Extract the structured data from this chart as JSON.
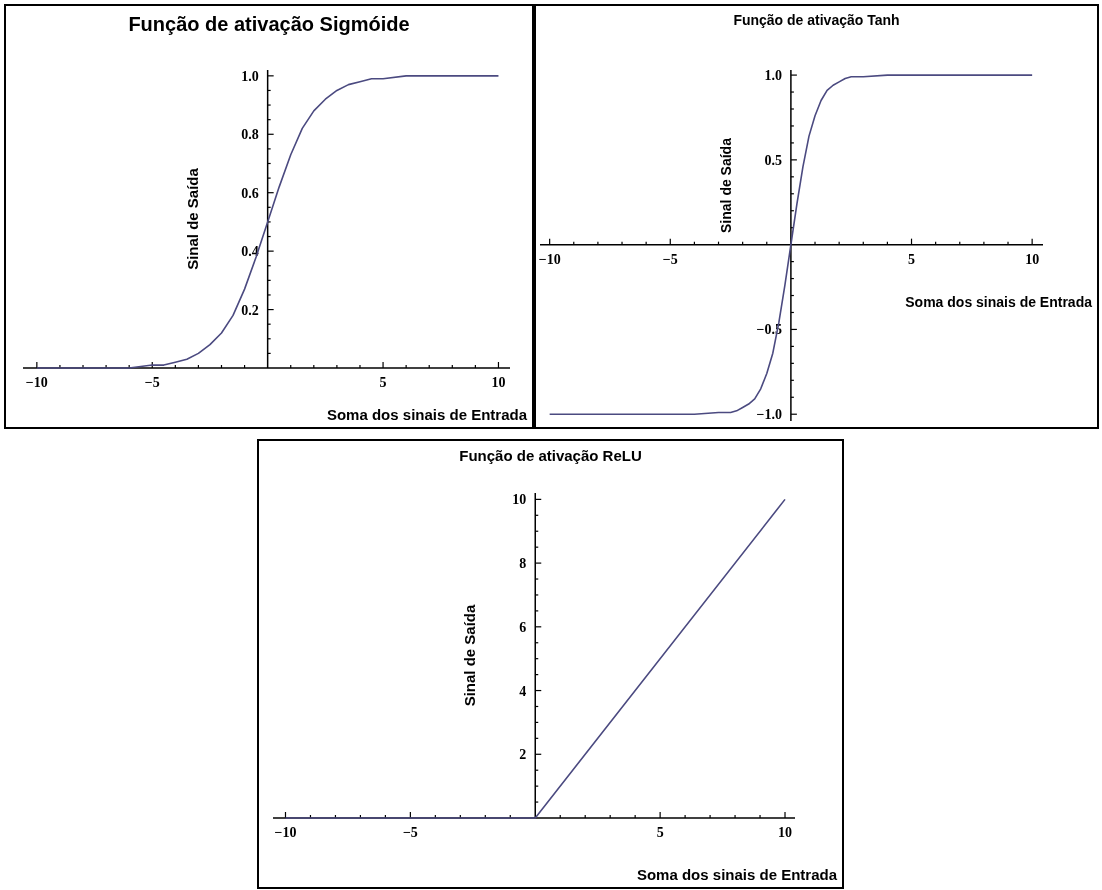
{
  "chart_data": [
    {
      "type": "line",
      "title": "Função de ativação Sigmóide",
      "xlabel": "Soma dos sinais de Entrada",
      "ylabel": "Sinal de Saída",
      "xlim": [
        -10.6,
        10.5
      ],
      "ylim": [
        0,
        1.02
      ],
      "grid": false,
      "xticks": [
        {
          "value": -10,
          "label": "−10"
        },
        {
          "value": -9,
          "label": null
        },
        {
          "value": -8,
          "label": null
        },
        {
          "value": -7,
          "label": null
        },
        {
          "value": -6,
          "label": null
        },
        {
          "value": -5,
          "label": "−5"
        },
        {
          "value": -4,
          "label": null
        },
        {
          "value": -3,
          "label": null
        },
        {
          "value": -2,
          "label": null
        },
        {
          "value": -1,
          "label": null
        },
        {
          "value": 1,
          "label": null
        },
        {
          "value": 2,
          "label": null
        },
        {
          "value": 3,
          "label": null
        },
        {
          "value": 4,
          "label": null
        },
        {
          "value": 5,
          "label": "5"
        },
        {
          "value": 6,
          "label": null
        },
        {
          "value": 7,
          "label": null
        },
        {
          "value": 8,
          "label": null
        },
        {
          "value": 9,
          "label": null
        },
        {
          "value": 10,
          "label": "10"
        }
      ],
      "yticks": [
        {
          "value": 0.05,
          "label": null
        },
        {
          "value": 0.1,
          "label": null
        },
        {
          "value": 0.15,
          "label": null
        },
        {
          "value": 0.2,
          "label": "0.2"
        },
        {
          "value": 0.25,
          "label": null
        },
        {
          "value": 0.3,
          "label": null
        },
        {
          "value": 0.35,
          "label": null
        },
        {
          "value": 0.4,
          "label": "0.4"
        },
        {
          "value": 0.45,
          "label": null
        },
        {
          "value": 0.5,
          "label": null
        },
        {
          "value": 0.55,
          "label": null
        },
        {
          "value": 0.6,
          "label": "0.6"
        },
        {
          "value": 0.65,
          "label": null
        },
        {
          "value": 0.7,
          "label": null
        },
        {
          "value": 0.75,
          "label": null
        },
        {
          "value": 0.8,
          "label": "0.8"
        },
        {
          "value": 0.85,
          "label": null
        },
        {
          "value": 0.9,
          "label": null
        },
        {
          "value": 0.95,
          "label": null
        },
        {
          "value": 1.0,
          "label": "1.0"
        }
      ],
      "series": [
        {
          "color": "#4b4a80",
          "x": [
            -10,
            -8,
            -6,
            -5,
            -4.5,
            -4,
            -3.5,
            -3,
            -2.5,
            -2,
            -1.5,
            -1,
            -0.5,
            0,
            0.5,
            1,
            1.5,
            2,
            2.5,
            3,
            3.5,
            4,
            4.5,
            5,
            6,
            8,
            10
          ],
          "values": [
            0,
            0,
            0,
            0.01,
            0.01,
            0.02,
            0.03,
            0.05,
            0.08,
            0.12,
            0.18,
            0.27,
            0.38,
            0.5,
            0.62,
            0.73,
            0.82,
            0.88,
            0.92,
            0.95,
            0.97,
            0.98,
            0.99,
            0.99,
            1,
            1,
            1
          ]
        }
      ]
    },
    {
      "type": "line",
      "title": "Função de ativação Tanh",
      "xlabel": "Soma dos sinais de Entrada",
      "ylabel": "Sinal de Saída",
      "xlim": [
        -10.4,
        10.45
      ],
      "ylim": [
        -1.04,
        1.03
      ],
      "grid": false,
      "xticks": [
        {
          "value": -10,
          "label": "−10"
        },
        {
          "value": -9,
          "label": null
        },
        {
          "value": -8,
          "label": null
        },
        {
          "value": -7,
          "label": null
        },
        {
          "value": -6,
          "label": null
        },
        {
          "value": -5,
          "label": "−5"
        },
        {
          "value": -4,
          "label": null
        },
        {
          "value": -3,
          "label": null
        },
        {
          "value": -2,
          "label": null
        },
        {
          "value": -1,
          "label": null
        },
        {
          "value": 1,
          "label": null
        },
        {
          "value": 2,
          "label": null
        },
        {
          "value": 3,
          "label": null
        },
        {
          "value": 4,
          "label": null
        },
        {
          "value": 5,
          "label": "5"
        },
        {
          "value": 6,
          "label": null
        },
        {
          "value": 7,
          "label": null
        },
        {
          "value": 8,
          "label": null
        },
        {
          "value": 9,
          "label": null
        },
        {
          "value": 10,
          "label": "10"
        }
      ],
      "yticks": [
        {
          "value": -1.0,
          "label": "−1.0"
        },
        {
          "value": -0.9,
          "label": null
        },
        {
          "value": -0.8,
          "label": null
        },
        {
          "value": -0.7,
          "label": null
        },
        {
          "value": -0.6,
          "label": null
        },
        {
          "value": -0.5,
          "label": "−0.5"
        },
        {
          "value": -0.4,
          "label": null
        },
        {
          "value": -0.3,
          "label": null
        },
        {
          "value": -0.2,
          "label": null
        },
        {
          "value": -0.1,
          "label": null
        },
        {
          "value": 0.1,
          "label": null
        },
        {
          "value": 0.2,
          "label": null
        },
        {
          "value": 0.3,
          "label": null
        },
        {
          "value": 0.4,
          "label": null
        },
        {
          "value": 0.5,
          "label": "0.5"
        },
        {
          "value": 0.6,
          "label": null
        },
        {
          "value": 0.7,
          "label": null
        },
        {
          "value": 0.8,
          "label": null
        },
        {
          "value": 0.9,
          "label": null
        },
        {
          "value": 1.0,
          "label": "1.0"
        }
      ],
      "series": [
        {
          "color": "#4b4a80",
          "x": [
            -10,
            -8,
            -6,
            -4,
            -3,
            -2.5,
            -2.25,
            -2,
            -1.75,
            -1.5,
            -1.25,
            -1,
            -0.75,
            -0.5,
            -0.25,
            0,
            0.25,
            0.5,
            0.75,
            1,
            1.25,
            1.5,
            1.75,
            2,
            2.25,
            2.5,
            3,
            4,
            6,
            8,
            10
          ],
          "values": [
            -1,
            -1,
            -1,
            -1,
            -0.99,
            -0.99,
            -0.98,
            -0.96,
            -0.94,
            -0.91,
            -0.85,
            -0.76,
            -0.64,
            -0.46,
            -0.24,
            0,
            0.24,
            0.46,
            0.64,
            0.76,
            0.85,
            0.91,
            0.94,
            0.96,
            0.98,
            0.99,
            0.99,
            1,
            1,
            1,
            1
          ]
        }
      ]
    },
    {
      "type": "line",
      "title": "Função de ativação ReLU",
      "xlabel": "Soma dos sinais de Entrada",
      "ylabel": "Sinal de Saída",
      "xlim": [
        -10.5,
        10.4
      ],
      "ylim": [
        0,
        10.2
      ],
      "grid": false,
      "xticks": [
        {
          "value": -10,
          "label": "−10"
        },
        {
          "value": -9,
          "label": null
        },
        {
          "value": -8,
          "label": null
        },
        {
          "value": -7,
          "label": null
        },
        {
          "value": -6,
          "label": null
        },
        {
          "value": -5,
          "label": "−5"
        },
        {
          "value": -4,
          "label": null
        },
        {
          "value": -3,
          "label": null
        },
        {
          "value": -2,
          "label": null
        },
        {
          "value": -1,
          "label": null
        },
        {
          "value": 1,
          "label": null
        },
        {
          "value": 2,
          "label": null
        },
        {
          "value": 3,
          "label": null
        },
        {
          "value": 4,
          "label": null
        },
        {
          "value": 5,
          "label": "5"
        },
        {
          "value": 6,
          "label": null
        },
        {
          "value": 7,
          "label": null
        },
        {
          "value": 8,
          "label": null
        },
        {
          "value": 9,
          "label": null
        },
        {
          "value": 10,
          "label": "10"
        }
      ],
      "yticks": [
        {
          "value": 0.5,
          "label": null
        },
        {
          "value": 1,
          "label": null
        },
        {
          "value": 1.5,
          "label": null
        },
        {
          "value": 2,
          "label": "2"
        },
        {
          "value": 2.5,
          "label": null
        },
        {
          "value": 3,
          "label": null
        },
        {
          "value": 3.5,
          "label": null
        },
        {
          "value": 4,
          "label": "4"
        },
        {
          "value": 4.5,
          "label": null
        },
        {
          "value": 5,
          "label": null
        },
        {
          "value": 5.5,
          "label": null
        },
        {
          "value": 6,
          "label": "6"
        },
        {
          "value": 6.5,
          "label": null
        },
        {
          "value": 7,
          "label": null
        },
        {
          "value": 7.5,
          "label": null
        },
        {
          "value": 8,
          "label": "8"
        },
        {
          "value": 8.5,
          "label": null
        },
        {
          "value": 9,
          "label": null
        },
        {
          "value": 9.5,
          "label": null
        },
        {
          "value": 10,
          "label": "10"
        }
      ],
      "series": [
        {
          "color": "#4b4a80",
          "x": [
            -10,
            0,
            10
          ],
          "values": [
            0,
            0,
            10
          ]
        }
      ]
    }
  ]
}
